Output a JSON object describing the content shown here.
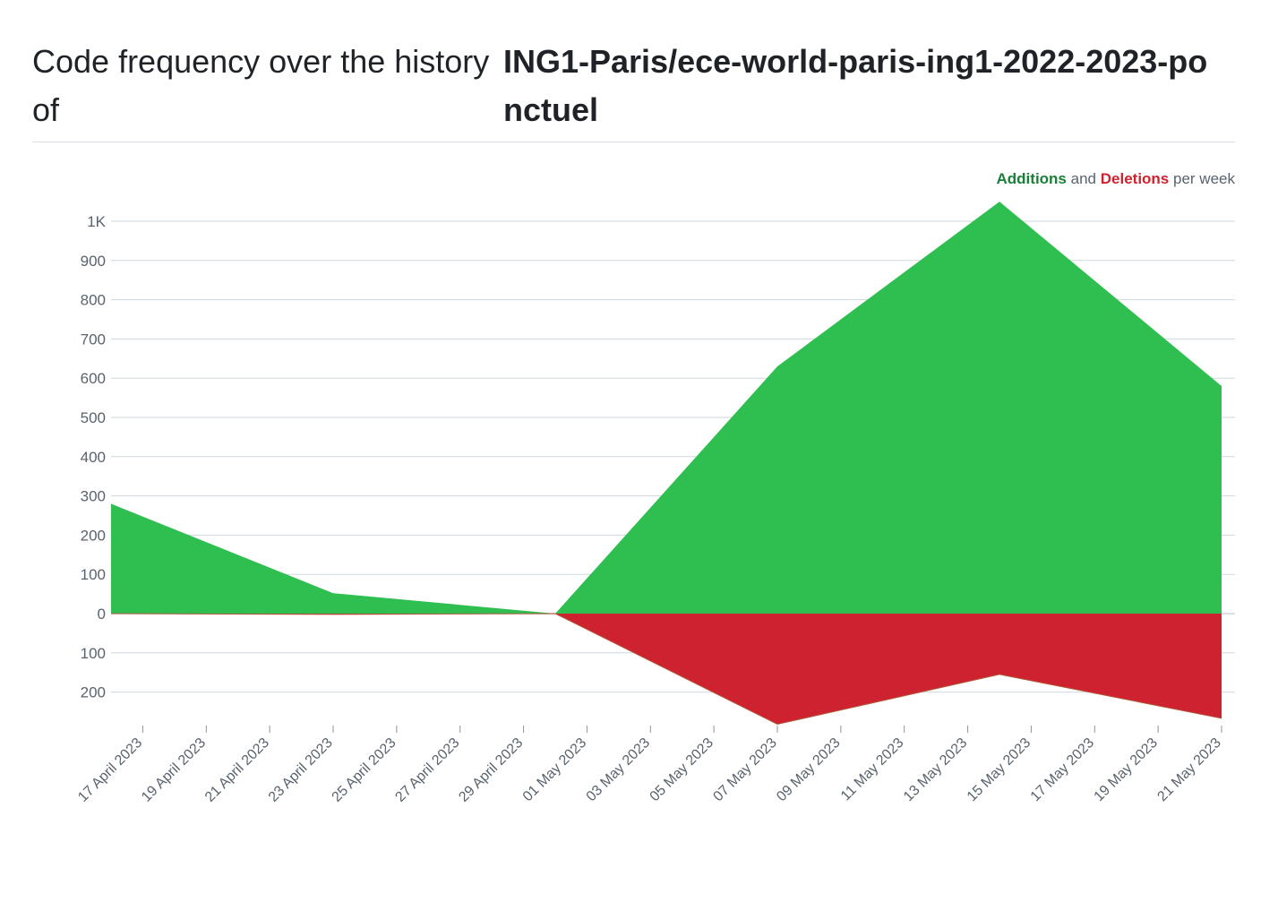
{
  "page": {
    "title_prefix": "Code frequency over the history of",
    "repo_name": "ING1-Paris/ece-world-paris-ing1-2022-2023-ponctuel"
  },
  "legend": {
    "additions_label": "Additions",
    "and_label": "and",
    "deletions_label": "Deletions",
    "per_week_label": "per week"
  },
  "colors": {
    "additions": "#2fbf50",
    "deletions": "#cf2231",
    "grid": "#d0d7de",
    "axis_text": "#59636e"
  },
  "chart_data": {
    "type": "area",
    "title": "",
    "xlabel": "",
    "ylabel": "",
    "x_ticks": [
      "17 April 2023",
      "19 April 2023",
      "21 April 2023",
      "23 April 2023",
      "25 April 2023",
      "27 April 2023",
      "29 April 2023",
      "01 May 2023",
      "03 May 2023",
      "05 May 2023",
      "07 May 2023",
      "09 May 2023",
      "11 May 2023",
      "13 May 2023",
      "15 May 2023",
      "17 May 2023",
      "19 May 2023",
      "21 May 2023"
    ],
    "xlim": [
      "2023-04-16",
      "2023-05-21"
    ],
    "y_ticks": [
      {
        "value": 1000,
        "label": "1K"
      },
      {
        "value": 900,
        "label": "900"
      },
      {
        "value": 800,
        "label": "800"
      },
      {
        "value": 700,
        "label": "700"
      },
      {
        "value": 600,
        "label": "600"
      },
      {
        "value": 500,
        "label": "500"
      },
      {
        "value": 400,
        "label": "400"
      },
      {
        "value": 300,
        "label": "300"
      },
      {
        "value": 200,
        "label": "200"
      },
      {
        "value": 100,
        "label": "100"
      },
      {
        "value": 0,
        "label": "0"
      },
      {
        "value": -100,
        "label": "100"
      },
      {
        "value": -200,
        "label": "200"
      }
    ],
    "ylim": [
      -290,
      1060
    ],
    "grid": true,
    "legend": "top-right",
    "series": [
      {
        "name": "Additions",
        "points": [
          {
            "x": "2023-04-16",
            "y": 280
          },
          {
            "x": "2023-04-23",
            "y": 52
          },
          {
            "x": "2023-04-30",
            "y": 0
          },
          {
            "x": "2023-05-07",
            "y": 630
          },
          {
            "x": "2023-05-14",
            "y": 1050
          },
          {
            "x": "2023-05-21",
            "y": 580
          }
        ]
      },
      {
        "name": "Deletions",
        "points": [
          {
            "x": "2023-04-16",
            "y": 0
          },
          {
            "x": "2023-04-23",
            "y": -2
          },
          {
            "x": "2023-04-30",
            "y": 0
          },
          {
            "x": "2023-05-07",
            "y": -282
          },
          {
            "x": "2023-05-14",
            "y": -155
          },
          {
            "x": "2023-05-21",
            "y": -267
          }
        ]
      }
    ]
  }
}
